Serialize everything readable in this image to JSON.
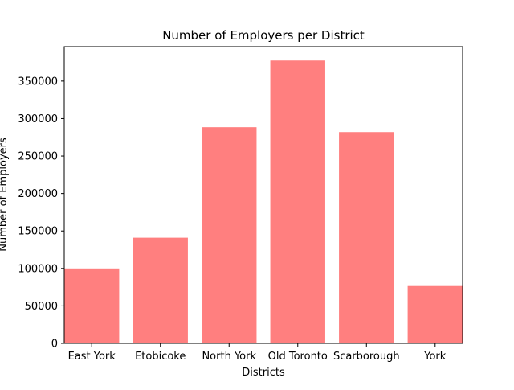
{
  "chart_data": {
    "type": "bar",
    "title": "Number of Employers per District",
    "xlabel": "Districts",
    "ylabel": "Number of Employers",
    "categories": [
      "East York",
      "Etobicoke",
      "North York",
      "Old Toronto",
      "Scarborough",
      "York"
    ],
    "values": [
      100000,
      141000,
      288500,
      377500,
      282000,
      76500
    ],
    "ylim": [
      0,
      396000
    ],
    "yticks": [
      0,
      50000,
      100000,
      150000,
      200000,
      250000,
      300000,
      350000
    ],
    "bar_color": "#ff7f7f",
    "grid": false,
    "legend": "none"
  }
}
